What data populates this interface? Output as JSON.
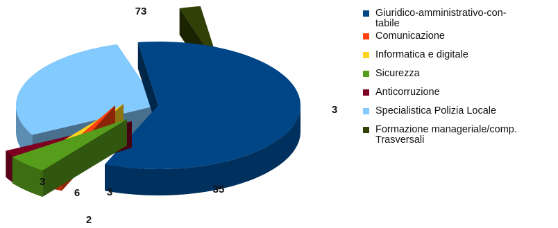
{
  "chart_data": {
    "type": "pie",
    "style": "3d-exploded",
    "categories": [
      "Giuridico-amministrativo-contabile",
      "Comunicazione",
      "Informatica e digitale",
      "Sicurezza",
      "Anticorruzione",
      "Specialistica Polizia Locale",
      "Formazione manageriale/comp. Trasversali"
    ],
    "values": [
      73,
      2,
      3,
      6,
      3,
      35,
      3
    ],
    "value_labels": [
      "73",
      "2",
      "3",
      "6",
      "3",
      "35",
      "3"
    ],
    "colors": [
      "#004586",
      "#ff420e",
      "#ffd320",
      "#579d1c",
      "#7e0021",
      "#83caff",
      "#314004"
    ],
    "legend": "right",
    "legend_entries": [
      {
        "label_lines": [
          "Giuridico-amministrativo-con-",
          "tabile"
        ],
        "color": "#004586"
      },
      {
        "label_lines": [
          "Comunicazione"
        ],
        "color": "#ff420e"
      },
      {
        "label_lines": [
          "Informatica e digitale"
        ],
        "color": "#ffd320"
      },
      {
        "label_lines": [
          "Sicurezza"
        ],
        "color": "#579d1c"
      },
      {
        "label_lines": [
          "Anticorruzione"
        ],
        "color": "#7e0021"
      },
      {
        "label_lines": [
          "Specialistica Polizia Locale"
        ],
        "color": "#83caff"
      },
      {
        "label_lines": [
          "Formazione manageriale/comp.",
          "Trasversali"
        ],
        "color": "#314004"
      }
    ]
  }
}
